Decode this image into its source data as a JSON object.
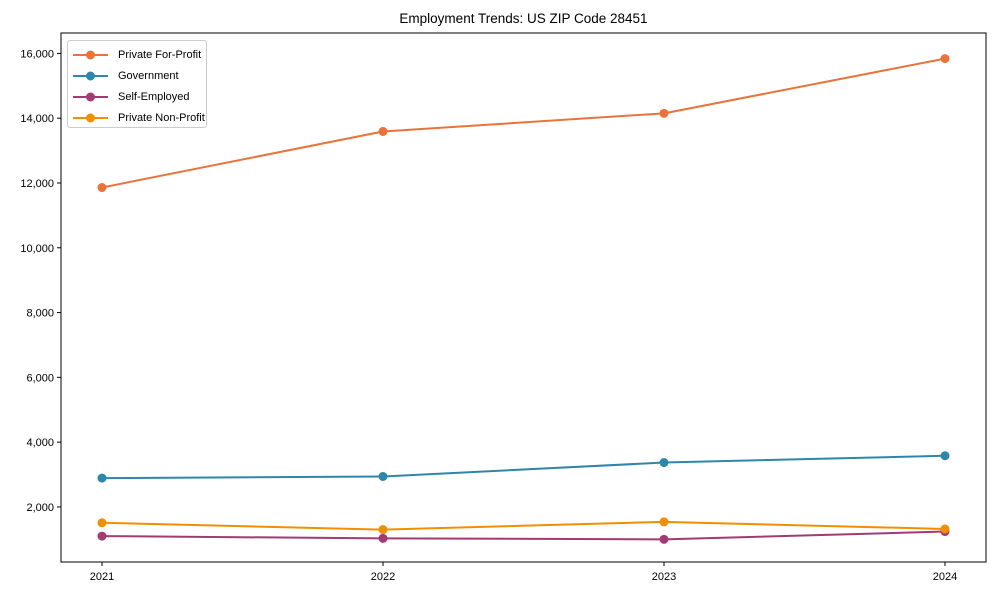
{
  "chart_data": {
    "type": "line",
    "title": "Employment Trends: US ZIP Code 28451",
    "categories": [
      "2021",
      "2022",
      "2023",
      "2024"
    ],
    "series": [
      {
        "name": "Private For-Profit",
        "color": "#E8743B",
        "values": [
          11860,
          13590,
          14150,
          15840
        ]
      },
      {
        "name": "Government",
        "color": "#2E86AB",
        "values": [
          2890,
          2940,
          3370,
          3580
        ]
      },
      {
        "name": "Self-Employed",
        "color": "#A23B72",
        "values": [
          1100,
          1030,
          1000,
          1240
        ]
      },
      {
        "name": "Private Non-Profit",
        "color": "#F18F01",
        "values": [
          1510,
          1300,
          1540,
          1320
        ]
      }
    ],
    "xlabel": "",
    "ylabel": "",
    "ylim": [
      300,
      16630
    ],
    "yticks": [
      2000,
      4000,
      6000,
      8000,
      10000,
      12000,
      14000,
      16000
    ],
    "grid": false,
    "legend_position": "upper-left",
    "marker": "circle",
    "spine_color": "#000000",
    "background_color": "#ffffff"
  }
}
